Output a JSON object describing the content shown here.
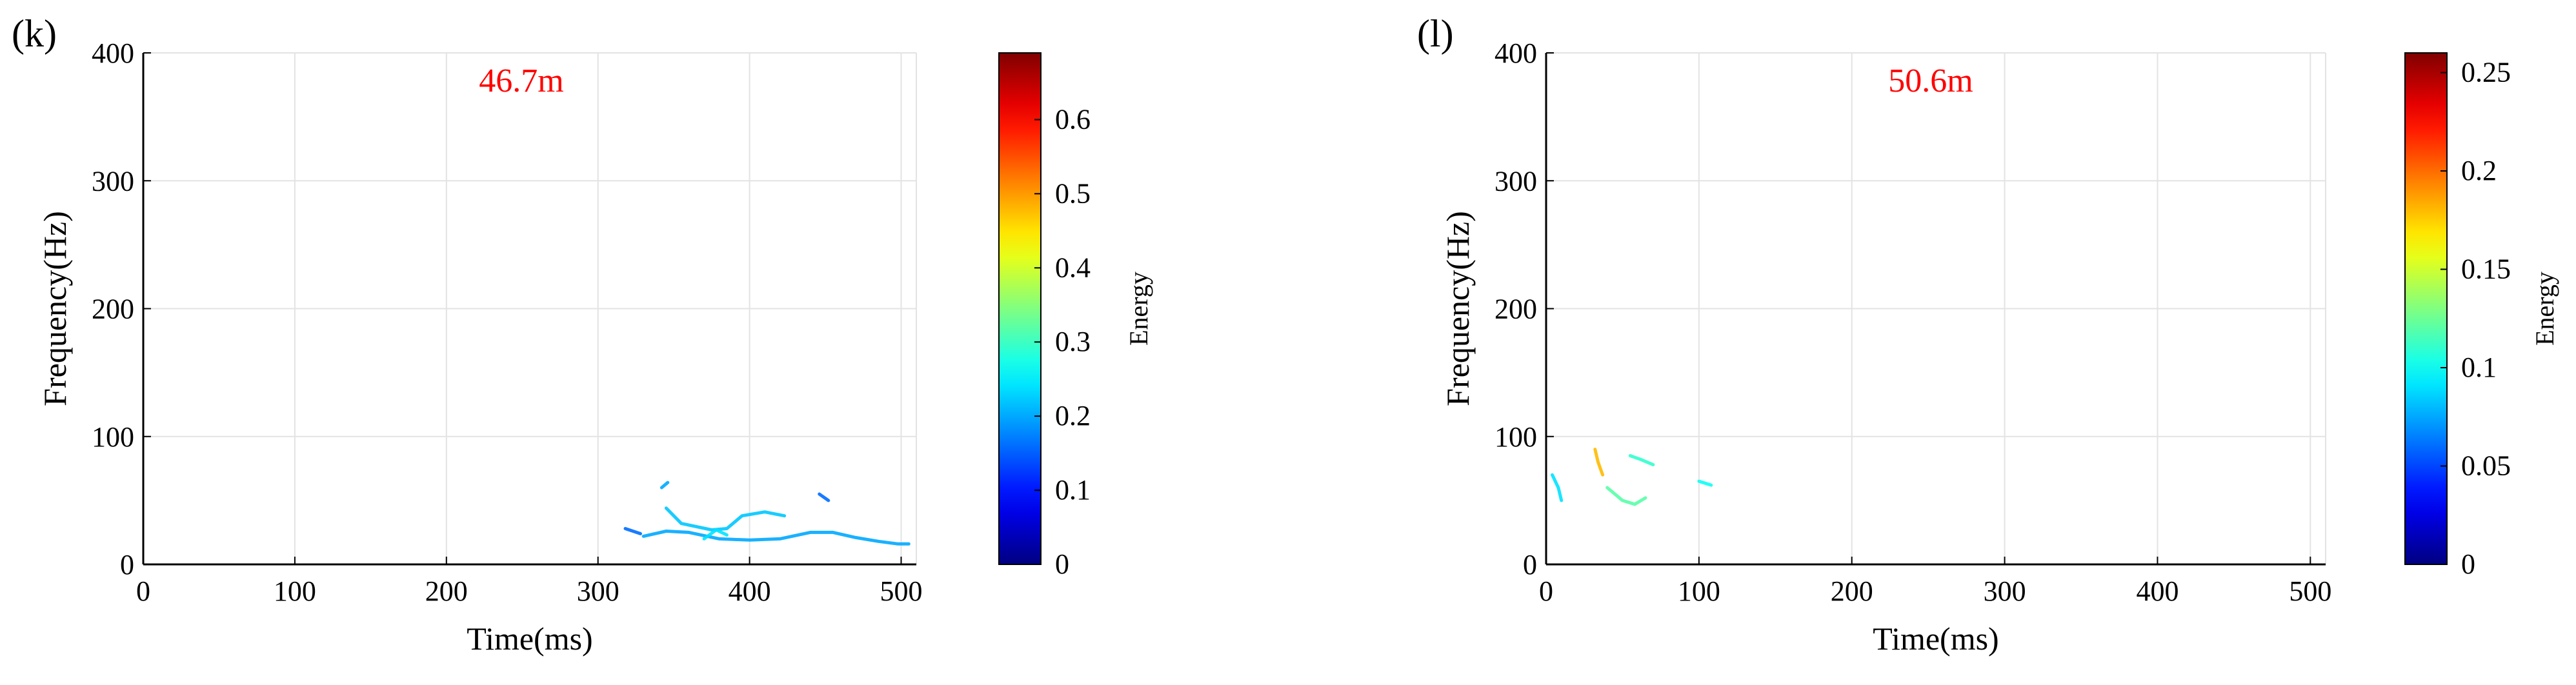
{
  "chart_data": [
    {
      "type": "heatmap",
      "panel_label": "(k)",
      "annotation": "46.7m",
      "annotation_color": "#ff0000",
      "xlabel": "Time(ms)",
      "ylabel": "Frequency(Hz)",
      "xlim": [
        0,
        510
      ],
      "ylim": [
        0,
        400
      ],
      "x_ticks": [
        "0",
        "100",
        "200",
        "300",
        "400",
        "500"
      ],
      "y_ticks": [
        "0",
        "100",
        "200",
        "300",
        "400"
      ],
      "grid": true,
      "colormap": "jet",
      "colorbar": {
        "label": "Energy",
        "range": [
          0,
          0.69
        ],
        "ticks": [
          "0",
          "0.1",
          "0.2",
          "0.3",
          "0.4",
          "0.5",
          "0.6"
        ]
      },
      "traces": [
        {
          "energy": 0.2,
          "points": [
            [
              330,
              22
            ],
            [
              345,
              26
            ],
            [
              360,
              25
            ],
            [
              380,
              20
            ],
            [
              400,
              19
            ],
            [
              420,
              20
            ],
            [
              440,
              25
            ],
            [
              455,
              25
            ],
            [
              470,
              21
            ],
            [
              485,
              18
            ],
            [
              498,
              16
            ],
            [
              505,
              16
            ]
          ]
        },
        {
          "energy": 0.16,
          "points": [
            [
              318,
              28
            ],
            [
              328,
              24
            ]
          ]
        },
        {
          "energy": 0.22,
          "points": [
            [
              345,
              44
            ],
            [
              355,
              32
            ],
            [
              375,
              27
            ],
            [
              385,
              28
            ],
            [
              395,
              38
            ],
            [
              410,
              41
            ],
            [
              423,
              38
            ]
          ]
        },
        {
          "energy": 0.2,
          "points": [
            [
              342,
              60
            ],
            [
              346,
              64
            ]
          ]
        },
        {
          "energy": 0.24,
          "points": [
            [
              370,
              20
            ],
            [
              378,
              27
            ],
            [
              385,
              23
            ]
          ]
        },
        {
          "energy": 0.16,
          "points": [
            [
              446,
              55
            ],
            [
              452,
              50
            ]
          ]
        }
      ]
    },
    {
      "type": "heatmap",
      "panel_label": "(l)",
      "annotation": "50.6m",
      "annotation_color": "#ff0000",
      "xlabel": "Time(ms)",
      "ylabel": "Frequency(Hz)",
      "xlim": [
        0,
        510
      ],
      "ylim": [
        0,
        400
      ],
      "x_ticks": [
        "0",
        "100",
        "200",
        "300",
        "400",
        "500"
      ],
      "y_ticks": [
        "0",
        "100",
        "200",
        "300",
        "400"
      ],
      "grid": true,
      "colormap": "jet",
      "colorbar": {
        "label": "Energy",
        "range": [
          0,
          0.26
        ],
        "ticks": [
          "0",
          "0.05",
          "0.1",
          "0.15",
          "0.2",
          "0.25"
        ]
      },
      "traces": [
        {
          "energy": 0.12,
          "points": [
            [
              40,
              60
            ],
            [
              50,
              50
            ],
            [
              58,
              47
            ],
            [
              65,
              52
            ]
          ]
        },
        {
          "energy": 0.18,
          "points": [
            [
              32,
              90
            ],
            [
              34,
              80
            ],
            [
              37,
              70
            ]
          ]
        },
        {
          "energy": 0.11,
          "points": [
            [
              55,
              85
            ],
            [
              62,
              82
            ],
            [
              70,
              78
            ]
          ]
        },
        {
          "energy": 0.09,
          "points": [
            [
              4,
              70
            ],
            [
              8,
              60
            ],
            [
              10,
              50
            ]
          ]
        },
        {
          "energy": 0.1,
          "points": [
            [
              100,
              65
            ],
            [
              108,
              62
            ]
          ]
        }
      ]
    }
  ]
}
